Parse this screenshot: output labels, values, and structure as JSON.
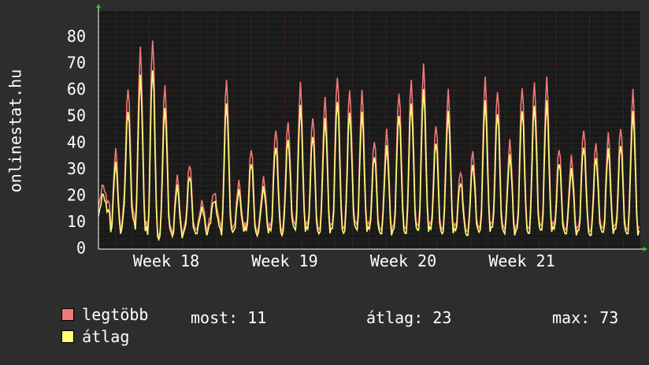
{
  "colors": {
    "background": "#2d2d2d",
    "plot_background": "#1a1a1a",
    "grid": "#3a3a3a",
    "grid_major": "#6b1f1f",
    "text": "#ffffff",
    "max_series": "#f07878",
    "avg_series": "#ffff78",
    "axis_arrow": "#22cc22"
  },
  "chart_data": {
    "type": "line",
    "ylabel": "onlinestat.hu",
    "ylim": [
      0,
      90
    ],
    "yticks": [
      0,
      10,
      20,
      30,
      40,
      50,
      60,
      70,
      80
    ],
    "x_range_days": [
      0,
      32
    ],
    "week_ticks": [
      {
        "label": "Week 18",
        "day": 4
      },
      {
        "label": "Week 19",
        "day": 11
      },
      {
        "label": "Week 20",
        "day": 18
      },
      {
        "label": "Week 21",
        "day": 25
      }
    ],
    "grid": true,
    "daily": {
      "peaks_max": [
        24,
        37,
        61,
        76,
        80,
        62,
        27,
        32,
        18,
        22,
        64,
        25,
        38,
        27,
        46,
        48,
        62,
        50,
        57,
        66,
        60,
        59,
        41,
        45,
        60,
        64,
        69,
        47,
        60,
        30,
        37,
        64,
        60,
        41,
        62,
        63,
        64,
        38,
        35,
        46,
        40,
        43,
        46,
        60
      ],
      "troughs_max": [
        17,
        8,
        14,
        10,
        6,
        8,
        6,
        8,
        8,
        11,
        8,
        9,
        7,
        9,
        8,
        10,
        9,
        8,
        9,
        9,
        10,
        9,
        8,
        8,
        9,
        9,
        9,
        8,
        9,
        8,
        8,
        9,
        9,
        8,
        9,
        9,
        9,
        8,
        8,
        8,
        8,
        8,
        8,
        8
      ]
    },
    "series": [
      {
        "name": "legtöbb",
        "color": "#f07878"
      },
      {
        "name": "átlag",
        "color": "#ffff78"
      }
    ]
  },
  "legend": {
    "max_label": "legtöbb",
    "avg_label": "átlag",
    "stats": {
      "current_label": "most:",
      "current_value": "11",
      "average_label": "átlag:",
      "average_value": "23",
      "max_label": "max:",
      "max_value": "73"
    }
  }
}
